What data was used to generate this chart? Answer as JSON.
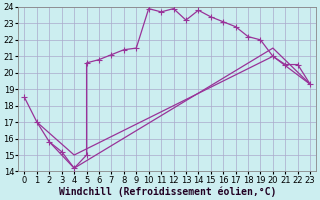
{
  "xlabel": "Windchill (Refroidissement éolien,°C)",
  "bg_color": "#cceef0",
  "grid_color": "#aaaacc",
  "line_color": "#993399",
  "xlim": [
    -0.5,
    23.5
  ],
  "ylim": [
    14,
    24
  ],
  "yticks": [
    14,
    15,
    16,
    17,
    18,
    19,
    20,
    21,
    22,
    23,
    24
  ],
  "xticks": [
    0,
    1,
    2,
    3,
    4,
    5,
    6,
    7,
    8,
    9,
    10,
    11,
    12,
    13,
    14,
    15,
    16,
    17,
    18,
    19,
    20,
    21,
    22,
    23
  ],
  "curve1_x": [
    0,
    1,
    2,
    3,
    4,
    5,
    5,
    6,
    7,
    8,
    9,
    10,
    11,
    12,
    13,
    14,
    15,
    16,
    17,
    18,
    19,
    20,
    21,
    22,
    23
  ],
  "curve1_y": [
    18.5,
    17.0,
    15.8,
    15.2,
    14.2,
    15.0,
    20.6,
    20.8,
    21.1,
    21.4,
    21.5,
    23.9,
    23.7,
    23.9,
    23.2,
    23.8,
    23.4,
    23.1,
    22.8,
    22.2,
    22.0,
    21.0,
    20.5,
    20.5,
    19.3
  ],
  "line2_x": [
    1,
    4,
    20,
    23
  ],
  "line2_y": [
    17.0,
    15.0,
    21.0,
    19.3
  ],
  "line3_x": [
    2,
    4,
    20,
    23
  ],
  "line3_y": [
    15.8,
    14.2,
    21.5,
    19.3
  ],
  "marker": "+",
  "markersize": 4,
  "linewidth": 0.9,
  "xlabel_fontsize": 7,
  "tick_fontsize": 6
}
